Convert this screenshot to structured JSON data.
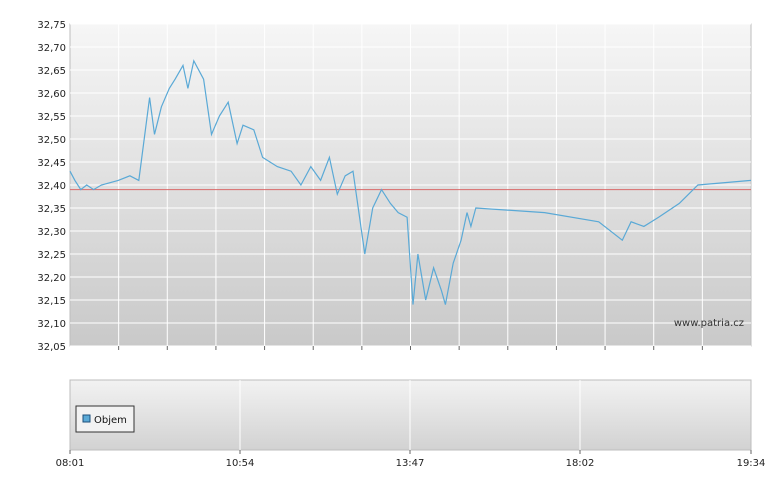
{
  "watermark": "www.patria.cz",
  "legend": {
    "label": "Objem",
    "swatch_color": "#5aa9d6"
  },
  "colors": {
    "line": "#5aa9d6",
    "reference": "#d96a6a",
    "grid": "#ffffff"
  },
  "chart_data": [
    {
      "type": "line",
      "title": "",
      "xlabel": "",
      "ylabel": "",
      "ylim": [
        32.05,
        32.75
      ],
      "xlim": [
        "08:01",
        "19:34"
      ],
      "y_ticks": [
        "32,05",
        "32,10",
        "32,15",
        "32,20",
        "32,25",
        "32,30",
        "32,35",
        "32,40",
        "32,45",
        "32,50",
        "32,55",
        "32,60",
        "32,65",
        "32,70",
        "32,75"
      ],
      "grid": true,
      "reference_line": 32.39,
      "series": [
        {
          "points": [
            [
              "08:01",
              32.43
            ],
            [
              "08:06",
              32.41
            ],
            [
              "08:12",
              32.39
            ],
            [
              "08:18",
              32.4
            ],
            [
              "08:25",
              32.39
            ],
            [
              "08:33",
              32.4
            ],
            [
              "08:50",
              32.41
            ],
            [
              "09:02",
              32.42
            ],
            [
              "09:11",
              32.41
            ],
            [
              "09:22",
              32.59
            ],
            [
              "09:27",
              32.51
            ],
            [
              "09:34",
              32.57
            ],
            [
              "09:42",
              32.61
            ],
            [
              "09:48",
              32.63
            ],
            [
              "09:56",
              32.66
            ],
            [
              "10:01",
              32.61
            ],
            [
              "10:07",
              32.67
            ],
            [
              "10:17",
              32.63
            ],
            [
              "10:25",
              32.51
            ],
            [
              "10:33",
              32.55
            ],
            [
              "10:42",
              32.58
            ],
            [
              "10:51",
              32.49
            ],
            [
              "10:57",
              32.53
            ],
            [
              "11:08",
              32.52
            ],
            [
              "11:17",
              32.46
            ],
            [
              "11:32",
              32.44
            ],
            [
              "11:46",
              32.43
            ],
            [
              "11:56",
              32.4
            ],
            [
              "12:06",
              32.44
            ],
            [
              "12:16",
              32.41
            ],
            [
              "12:25",
              32.46
            ],
            [
              "12:33",
              32.38
            ],
            [
              "12:41",
              32.42
            ],
            [
              "12:49",
              32.43
            ],
            [
              "13:01",
              32.25
            ],
            [
              "13:09",
              32.35
            ],
            [
              "13:18",
              32.39
            ],
            [
              "13:27",
              32.36
            ],
            [
              "13:35",
              32.34
            ],
            [
              "13:44",
              32.33
            ],
            [
              "13:50",
              32.14
            ],
            [
              "13:55",
              32.25
            ],
            [
              "14:03",
              32.15
            ],
            [
              "14:11",
              32.22
            ],
            [
              "14:19",
              32.17
            ],
            [
              "14:23",
              32.14
            ],
            [
              "14:31",
              32.23
            ],
            [
              "14:39",
              32.28
            ],
            [
              "14:45",
              32.34
            ],
            [
              "14:49",
              32.31
            ],
            [
              "14:54",
              32.35
            ],
            [
              "16:04",
              32.34
            ],
            [
              "16:59",
              32.32
            ],
            [
              "17:23",
              32.28
            ],
            [
              "17:32",
              32.32
            ],
            [
              "17:45",
              32.31
            ],
            [
              "18:00",
              32.33
            ],
            [
              "18:21",
              32.36
            ],
            [
              "18:40",
              32.4
            ],
            [
              "19:34",
              32.41
            ]
          ]
        }
      ]
    },
    {
      "type": "bar",
      "title": "",
      "x_ticks": [
        "08:01",
        "10:54",
        "13:47",
        "18:02",
        "19:34"
      ],
      "series": [
        {
          "name": "Objem",
          "values": []
        }
      ]
    }
  ]
}
